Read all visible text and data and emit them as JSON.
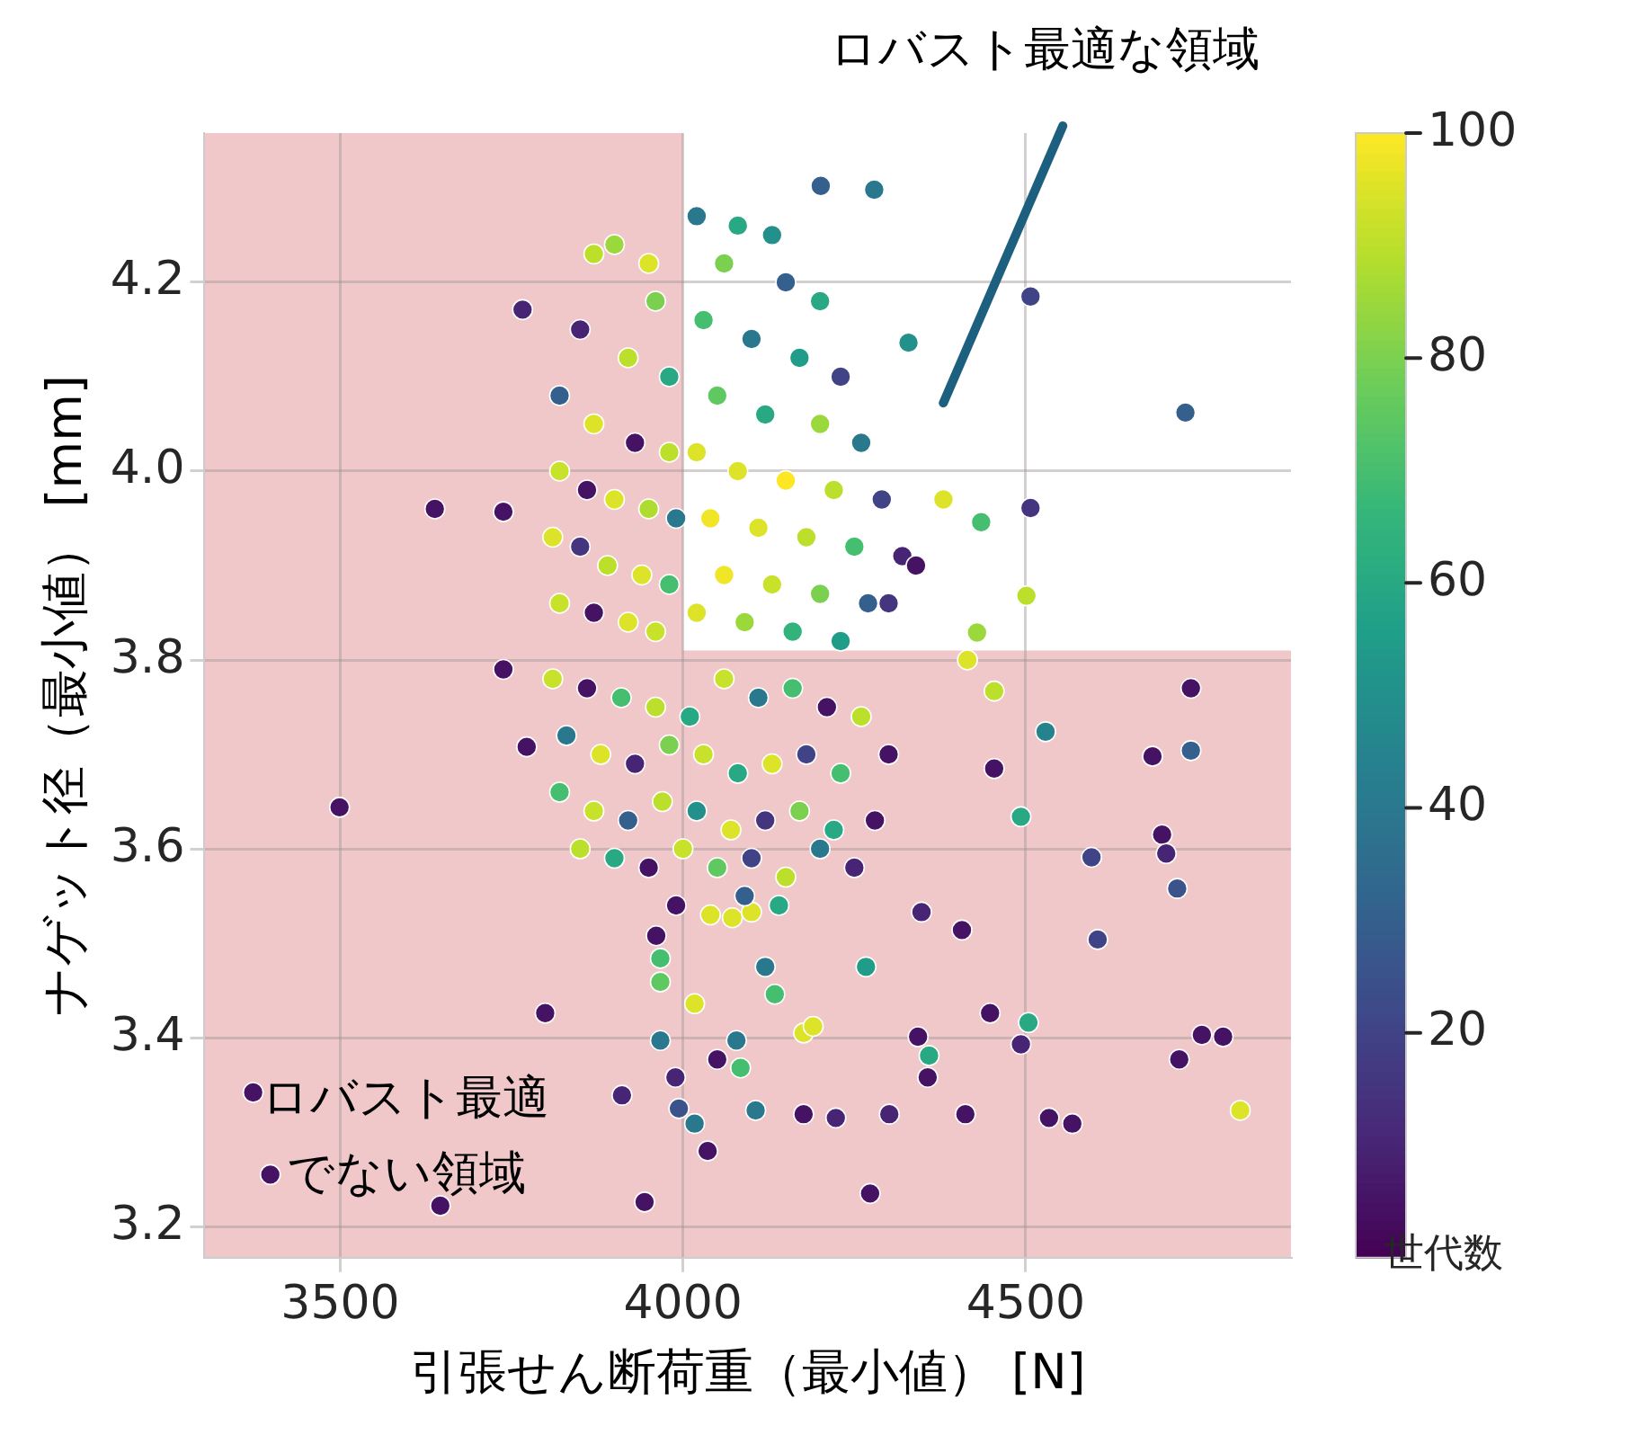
{
  "chart_data": {
    "type": "scatter",
    "xlabel": "引張せん断荷重（最小値） [N]",
    "ylabel": "ナゲット径（最小値） [mm]",
    "clabel": "世代数",
    "xlim": [
      3302,
      4887
    ],
    "ylim": [
      3.167,
      4.358
    ],
    "xticks": [
      3500,
      4000,
      4500
    ],
    "yticks": [
      3.2,
      3.4,
      3.6,
      3.8,
      {
        "value": 4.0,
        "label": "4.0"
      },
      4.2
    ],
    "clim": [
      0,
      100
    ],
    "cticks": [
      20,
      40,
      60,
      80,
      100
    ],
    "grid": true,
    "marker": "circle",
    "legend": false,
    "bands": [
      {
        "axis": "x",
        "from": 3302,
        "to": 4000,
        "color": "#f0c8ca",
        "label": "ロバスト最適でない領域"
      },
      {
        "axis": "y",
        "from": 3.167,
        "to": 3.81,
        "color": "#f0c8ca"
      }
    ],
    "annotations": [
      "ロバスト最適な領域"
    ],
    "x": [
      3499,
      3638,
      3766,
      3738,
      3738,
      3772,
      3799,
      3373,
      3398,
      3646,
      3944,
      4273,
      4201,
      4279,
      4507,
      4329,
      4733,
      4507,
      4435,
      4501,
      4429,
      4415,
      4454,
      4529,
      4741,
      4741,
      4685,
      4454,
      4699,
      4705,
      4596,
      4493,
      4721,
      4605,
      4407,
      4348,
      4267,
      4504,
      4493,
      4448,
      4343,
      4359,
      4357,
      4412,
      4534,
      4568,
      4724,
      4757,
      4788,
      4813,
      4301,
      4223,
      4176,
      4106,
      4017,
      3994,
      3989,
      3967,
      3967,
      3967,
      3961,
      4072,
      4100,
      4017,
      4120,
      4134,
      4176,
      4190,
      4078,
      4084,
      4050,
      3911,
      4036,
      3870,
      3900,
      3950,
      3960,
      3850,
      3920,
      3980,
      3820,
      3870,
      3930,
      3980,
      3820,
      3860,
      3900,
      3950,
      3990,
      3810,
      3850,
      3890,
      3940,
      3980,
      3820,
      3870,
      3920,
      3960,
      4020,
      4080,
      4130,
      4060,
      4150,
      4200,
      4030,
      4100,
      4170,
      4230,
      4050,
      4120,
      4200,
      4260,
      4020,
      4080,
      4150,
      4220,
      4290,
      4040,
      4110,
      4180,
      4250,
      4320,
      4060,
      4130,
      4200,
      4270,
      4020,
      4090,
      4160,
      4230,
      4300,
      4340,
      4380,
      3810,
      3860,
      3910,
      3960,
      4010,
      4060,
      4110,
      4160,
      4210,
      4260,
      3830,
      3880,
      3930,
      3980,
      4030,
      4080,
      4130,
      4180,
      4230,
      4300,
      3820,
      3870,
      3920,
      3970,
      4020,
      4070,
      4120,
      4170,
      4220,
      4280,
      3850,
      3900,
      3950,
      4000,
      4050,
      4100,
      4150,
      4200,
      4250,
      3990,
      4040,
      4090,
      4140
    ],
    "values": [
      3.644,
      3.96,
      4.171,
      3.957,
      3.79,
      3.708,
      3.426,
      3.342,
      3.255,
      3.222,
      3.226,
      3.235,
      4.302,
      4.298,
      4.185,
      4.136,
      4.062,
      3.961,
      3.946,
      3.868,
      3.829,
      3.8,
      3.767,
      3.724,
      3.77,
      3.704,
      3.698,
      3.685,
      3.615,
      3.595,
      3.591,
      3.634,
      3.558,
      3.504,
      3.514,
      3.533,
      3.475,
      3.416,
      3.393,
      3.426,
      3.401,
      3.381,
      3.358,
      3.319,
      3.315,
      3.309,
      3.377,
      3.403,
      3.401,
      3.323,
      3.319,
      3.315,
      3.319,
      3.323,
      3.309,
      3.325,
      3.358,
      3.397,
      3.459,
      3.484,
      3.508,
      3.527,
      3.533,
      3.436,
      3.475,
      3.446,
      3.405,
      3.412,
      3.397,
      3.368,
      3.377,
      3.339,
      3.28,
      4.23,
      4.24,
      4.22,
      4.18,
      4.15,
      4.12,
      4.1,
      4.08,
      4.05,
      4.03,
      4.02,
      4.0,
      3.98,
      3.97,
      3.96,
      3.95,
      3.93,
      3.92,
      3.9,
      3.89,
      3.88,
      3.86,
      3.85,
      3.84,
      3.83,
      4.27,
      4.26,
      4.25,
      4.22,
      4.2,
      4.18,
      4.16,
      4.14,
      4.12,
      4.1,
      4.08,
      4.06,
      4.05,
      4.03,
      4.02,
      4.0,
      3.99,
      3.98,
      3.97,
      3.95,
      3.94,
      3.93,
      3.92,
      3.91,
      3.89,
      3.88,
      3.87,
      3.86,
      3.85,
      3.84,
      3.83,
      3.82,
      3.86,
      3.9,
      3.97,
      3.78,
      3.77,
      3.76,
      3.75,
      3.74,
      3.78,
      3.76,
      3.77,
      3.75,
      3.74,
      3.72,
      3.7,
      3.69,
      3.71,
      3.7,
      3.68,
      3.69,
      3.7,
      3.68,
      3.7,
      3.66,
      3.64,
      3.63,
      3.65,
      3.64,
      3.62,
      3.63,
      3.64,
      3.62,
      3.63,
      3.6,
      3.59,
      3.58,
      3.6,
      3.58,
      3.59,
      3.57,
      3.6,
      3.58,
      3.54,
      3.53,
      3.55,
      3.54
    ],
    "cvalues": [
      5,
      5,
      10,
      5,
      5,
      5,
      5,
      5,
      5,
      5,
      5,
      5,
      30,
      40,
      20,
      50,
      30,
      15,
      70,
      90,
      85,
      95,
      90,
      45,
      5,
      30,
      5,
      5,
      5,
      10,
      20,
      60,
      25,
      20,
      5,
      10,
      55,
      60,
      10,
      5,
      5,
      60,
      5,
      5,
      5,
      5,
      5,
      5,
      5,
      95,
      10,
      10,
      5,
      40,
      40,
      25,
      10,
      40,
      75,
      70,
      5,
      95,
      95,
      95,
      40,
      70,
      95,
      95,
      40,
      70,
      5,
      10,
      5,
      90,
      85,
      95,
      80,
      10,
      90,
      60,
      30,
      95,
      5,
      90,
      92,
      5,
      95,
      88,
      40,
      95,
      15,
      90,
      95,
      70,
      92,
      5,
      95,
      92,
      40,
      60,
      50,
      80,
      30,
      60,
      70,
      40,
      55,
      20,
      75,
      60,
      85,
      40,
      95,
      95,
      100,
      90,
      20,
      98,
      95,
      90,
      70,
      10,
      98,
      92,
      80,
      30,
      95,
      85,
      65,
      55,
      15,
      5,
      95,
      92,
      5,
      70,
      90,
      60,
      92,
      40,
      70,
      5,
      90,
      40,
      95,
      10,
      80,
      92,
      60,
      95,
      20,
      70,
      5,
      70,
      92,
      30,
      90,
      50,
      95,
      15,
      80,
      60,
      5,
      90,
      60,
      5,
      92,
      75,
      20,
      90,
      40,
      10,
      5,
      95,
      30,
      60
    ]
  }
}
